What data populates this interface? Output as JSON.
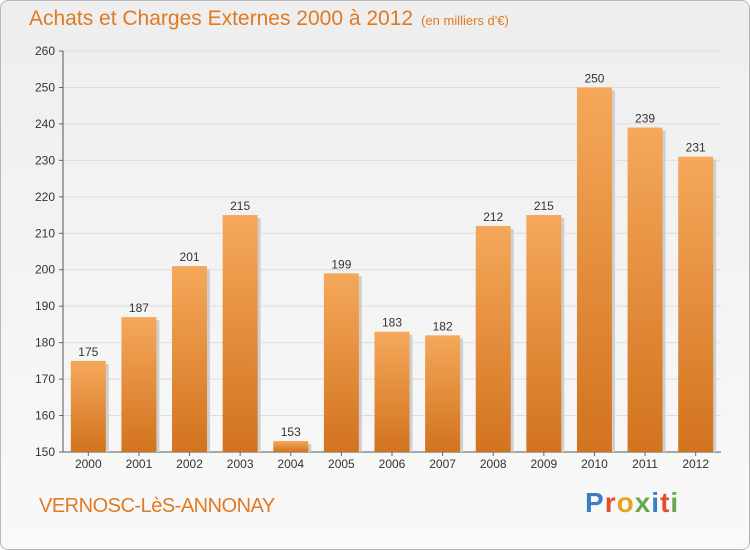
{
  "title": {
    "main": "Achats et Charges Externes 2000 à 2012",
    "unit": "(en milliers d'€)"
  },
  "commune": "VERNOSC-LèS-ANNONAY",
  "logo": {
    "text": "Proxiti",
    "colors": [
      "#3a7fc4",
      "#e0502a",
      "#e8a21f",
      "#6aa84f",
      "#3a7fc4",
      "#e0502a",
      "#6aa84f"
    ]
  },
  "colors": {
    "accent": "#e07a22",
    "bar_top": "#f5a85a",
    "bar_bottom": "#d2731f",
    "grid": "#dddddd"
  },
  "chart_data": {
    "type": "bar",
    "categories": [
      "2000",
      "2001",
      "2002",
      "2003",
      "2004",
      "2005",
      "2006",
      "2007",
      "2008",
      "2009",
      "2010",
      "2011",
      "2012"
    ],
    "values": [
      175,
      187,
      201,
      215,
      153,
      199,
      183,
      182,
      212,
      215,
      250,
      239,
      231
    ],
    "ylim": [
      150,
      260
    ],
    "yticks": [
      150,
      160,
      170,
      180,
      190,
      200,
      210,
      220,
      230,
      240,
      250,
      260
    ],
    "grid": true,
    "data_labels": true
  }
}
